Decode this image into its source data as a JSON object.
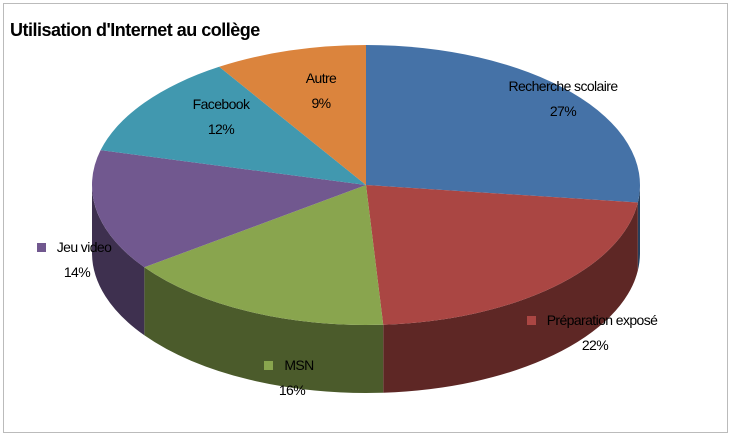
{
  "chart_data": {
    "type": "pie",
    "title": "Utilisation d'Internet au collège",
    "categories": [
      "Recherche scolaire",
      "Préparation exposé",
      "MSN",
      "Jeu video",
      "Facebook",
      "Autre"
    ],
    "values": [
      27,
      22,
      16,
      14,
      12,
      9
    ],
    "value_labels": [
      "27%",
      "22%",
      "16%",
      "14%",
      "12%",
      "9%"
    ],
    "colors": [
      "#4572a7",
      "#aa4643",
      "#89a54e",
      "#71588f",
      "#4198af",
      "#db843d"
    ]
  }
}
